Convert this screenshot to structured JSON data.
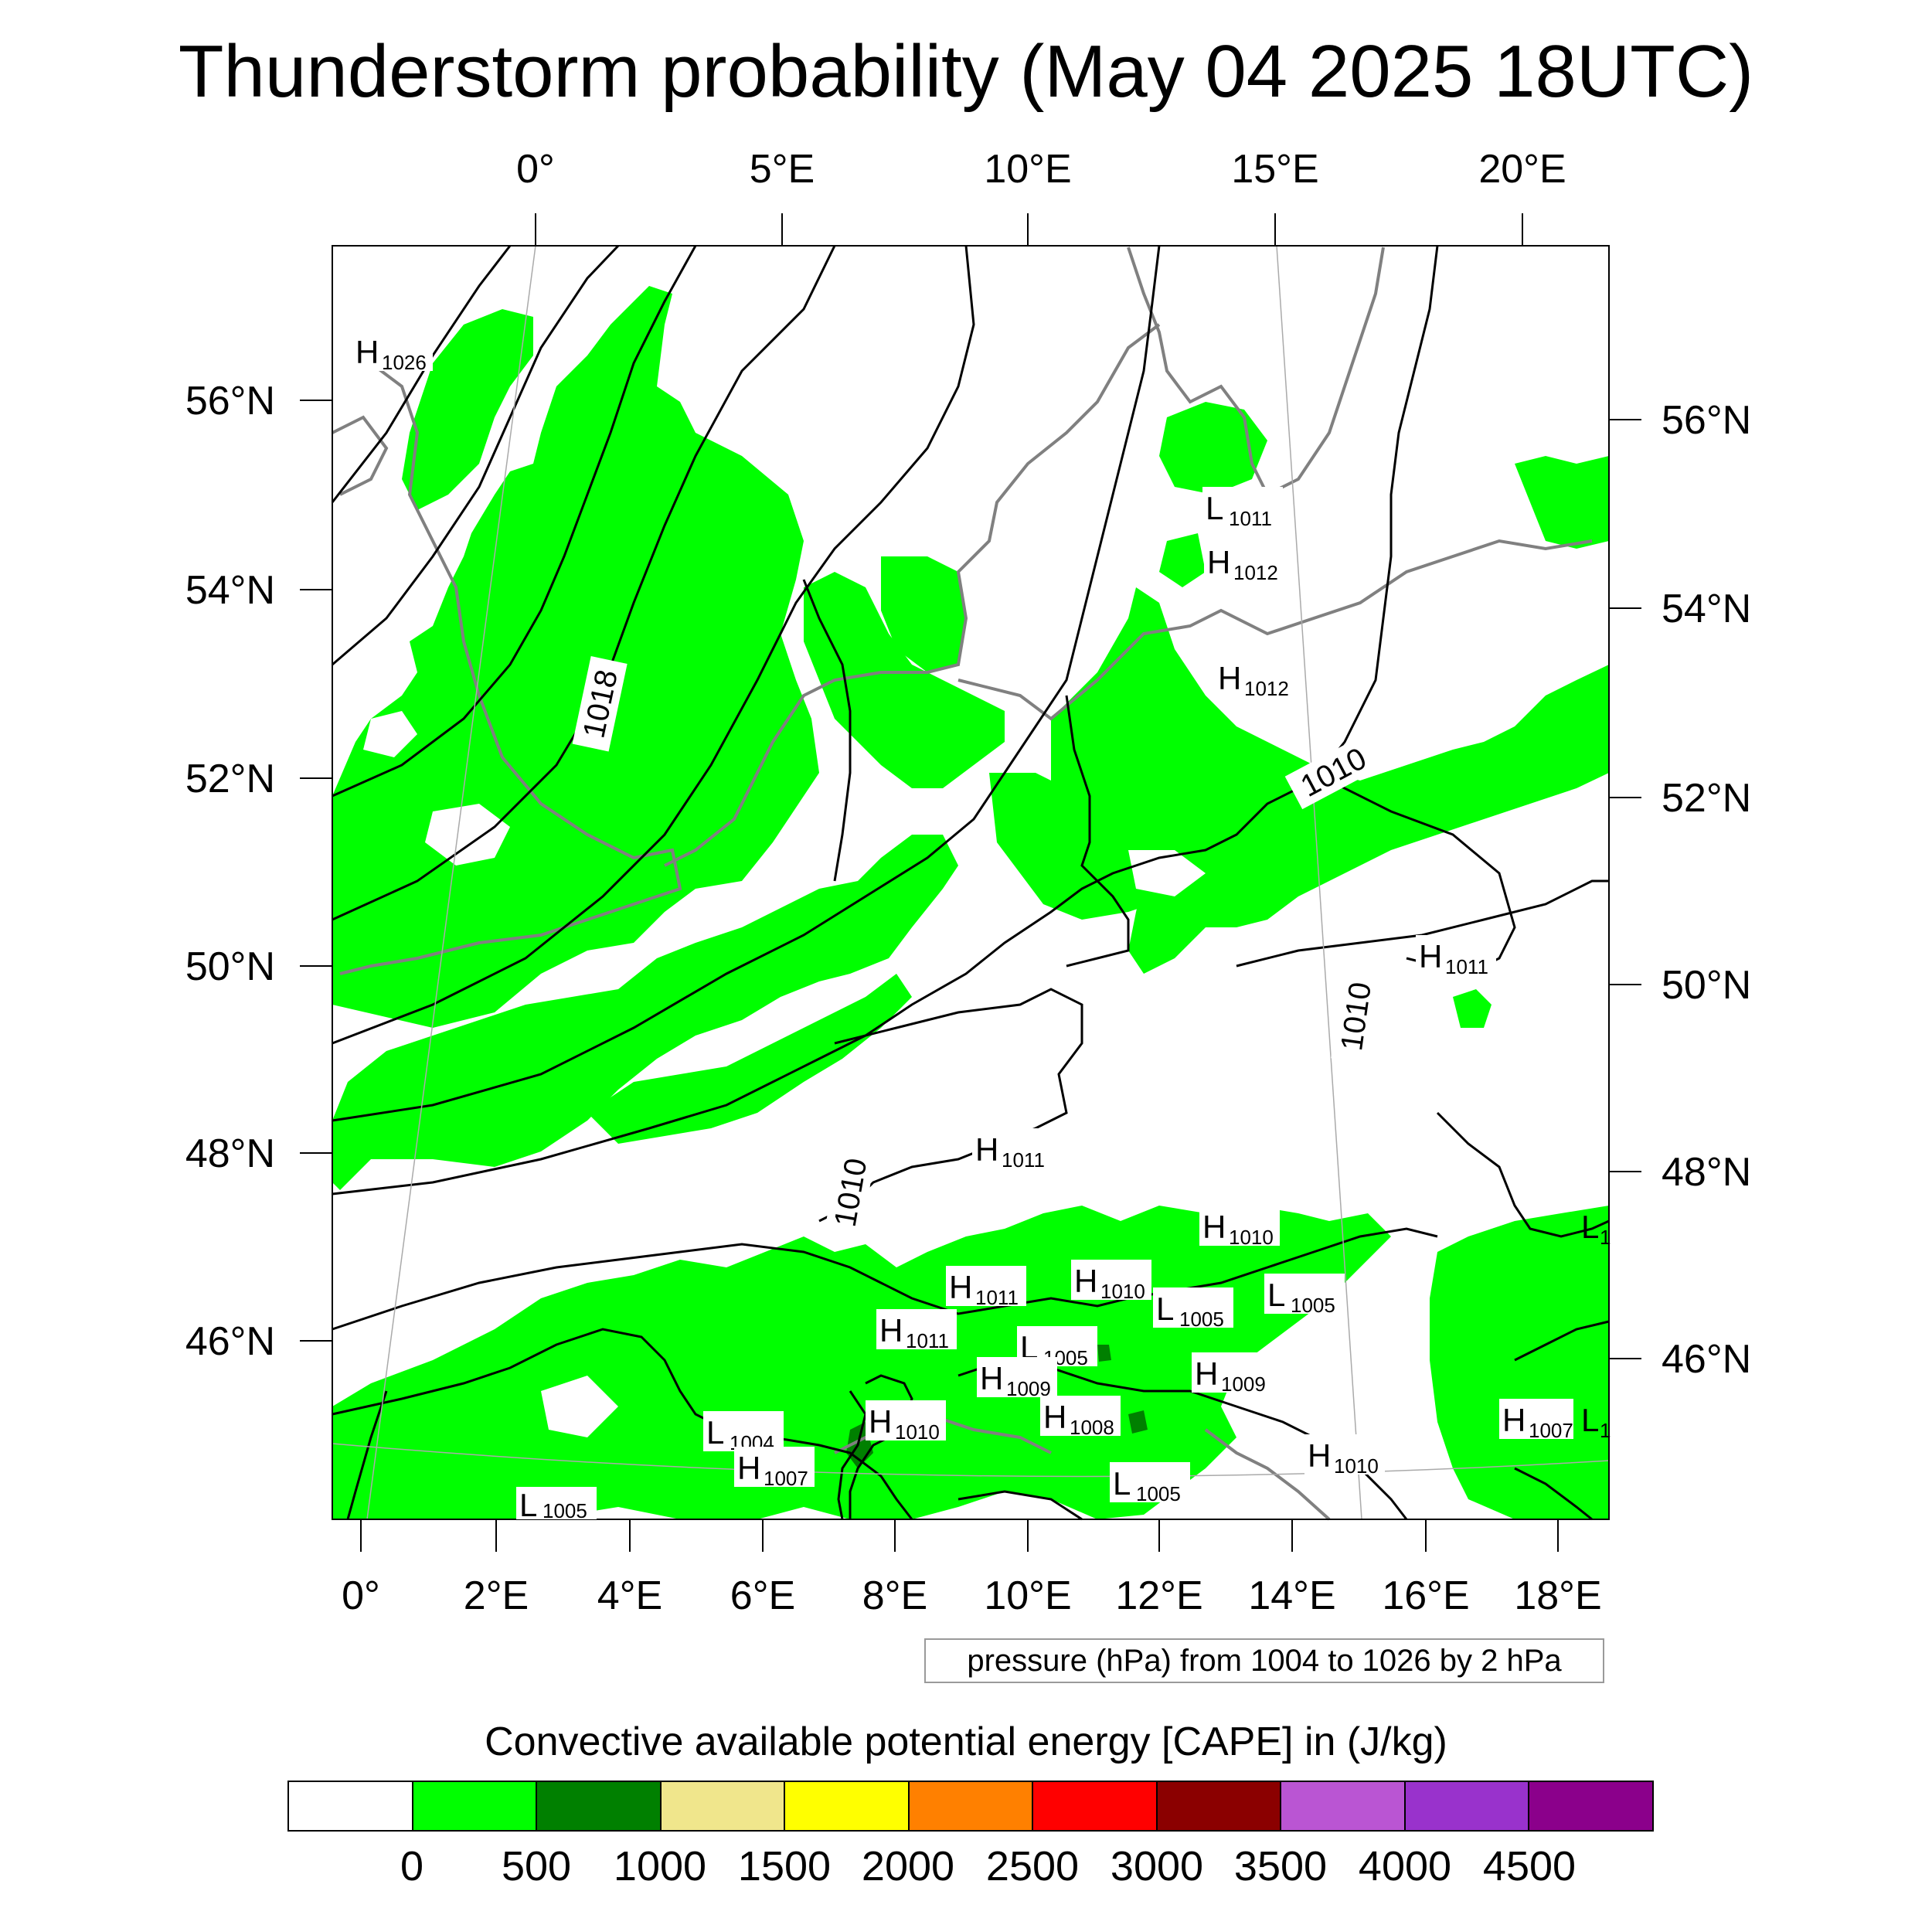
{
  "title": "Thunderstorm probability (May 04 2025 18UTC)",
  "top_axis_labels": [
    "0°",
    "5°E",
    "10°E",
    "15°E",
    "20°E"
  ],
  "bottom_axis_labels": [
    "0°",
    "2°E",
    "4°E",
    "6°E",
    "8°E",
    "10°E",
    "12°E",
    "14°E",
    "16°E",
    "18°E"
  ],
  "left_axis_labels": [
    "56°N",
    "54°N",
    "52°N",
    "50°N",
    "48°N",
    "46°N"
  ],
  "right_axis_labels": [
    "56°N",
    "54°N",
    "52°N",
    "50°N",
    "48°N",
    "46°N"
  ],
  "isobar_labels": [
    "1018",
    "1010",
    "1010",
    "1010"
  ],
  "pressure_centers": [
    {
      "type": "H",
      "value": "1026"
    },
    {
      "type": "L",
      "value": "1011"
    },
    {
      "type": "H",
      "value": "1012"
    },
    {
      "type": "H",
      "value": "1012"
    },
    {
      "type": "H",
      "value": "1011"
    },
    {
      "type": "H",
      "value": "1011"
    },
    {
      "type": "H",
      "value": "1010"
    },
    {
      "type": "H",
      "value": "1010"
    },
    {
      "type": "L",
      "value": "1005"
    },
    {
      "type": "L",
      "value": "1005"
    },
    {
      "type": "H",
      "value": "1011"
    },
    {
      "type": "H",
      "value": "1011"
    },
    {
      "type": "L",
      "value": "1005"
    },
    {
      "type": "H",
      "value": "1009"
    },
    {
      "type": "H",
      "value": "1009"
    },
    {
      "type": "H",
      "value": "1008"
    },
    {
      "type": "H",
      "value": "1010"
    },
    {
      "type": "L",
      "value": "1004"
    },
    {
      "type": "H",
      "value": "1007"
    },
    {
      "type": "L",
      "value": "1005"
    },
    {
      "type": "L",
      "value": "1005"
    },
    {
      "type": "H",
      "value": "1010"
    },
    {
      "type": "H",
      "value": "1007"
    },
    {
      "type": "L",
      "value": "1"
    },
    {
      "type": "L",
      "value": "1"
    }
  ],
  "pressure_note": "pressure (hPa) from 1004 to 1026 by 2 hPa",
  "legend": {
    "title": "Convective available potential energy [CAPE] in (J/kg)",
    "colors": [
      "#ffffff",
      "#00ff00",
      "#008000",
      "#f0e68c",
      "#ffff00",
      "#ff8000",
      "#ff0000",
      "#8b0000",
      "#ba55d3",
      "#9932cc",
      "#8b008b"
    ],
    "ticks": [
      "0",
      "500",
      "1000",
      "1500",
      "2000",
      "2500",
      "3000",
      "3500",
      "4000",
      "4500"
    ]
  }
}
